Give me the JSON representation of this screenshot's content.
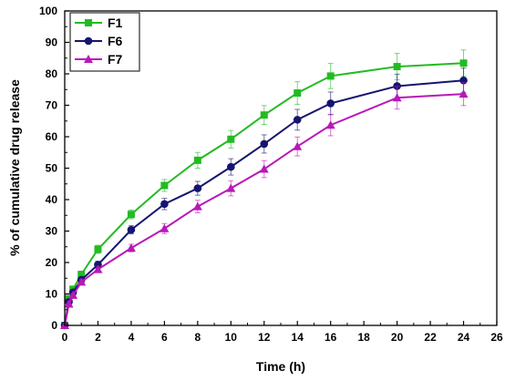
{
  "chart_data": {
    "type": "line",
    "xlabel": "Time (h)",
    "ylabel": "% of cumulative drug release",
    "xlim": [
      0,
      26
    ],
    "ylim": [
      0,
      100
    ],
    "xticks": [
      0,
      2,
      4,
      6,
      8,
      10,
      12,
      14,
      16,
      18,
      20,
      22,
      24,
      26
    ],
    "yticks": [
      0,
      10,
      20,
      30,
      40,
      50,
      60,
      70,
      80,
      90,
      100
    ],
    "grid": false,
    "legend_position": "top-left",
    "x": [
      0,
      0.25,
      0.5,
      1,
      2,
      4,
      6,
      8,
      10,
      12,
      14,
      16,
      20,
      24
    ],
    "series": [
      {
        "name": "F1",
        "color": "#22bb22",
        "marker": "square",
        "values": [
          0,
          8.5,
          11.5,
          16.2,
          24.2,
          35.3,
          44.5,
          52.5,
          59.2,
          66.9,
          73.9,
          79.3,
          82.3,
          83.4
        ],
        "errors": [
          0,
          0.6,
          0.8,
          1.0,
          1.3,
          1.4,
          1.9,
          2.5,
          2.8,
          3.0,
          3.6,
          4.0,
          4.2,
          4.2
        ]
      },
      {
        "name": "F6",
        "color": "#15156f",
        "marker": "circle",
        "values": [
          0,
          7.5,
          10.5,
          14.5,
          19.3,
          30.4,
          38.6,
          43.6,
          50.4,
          57.7,
          65.4,
          70.6,
          76.1,
          77.9
        ],
        "errors": [
          0,
          0.5,
          0.7,
          0.9,
          1.1,
          1.3,
          1.8,
          2.2,
          2.6,
          2.9,
          3.3,
          3.6,
          3.8,
          3.9
        ]
      },
      {
        "name": "F7",
        "color": "#b818b8",
        "marker": "triangle",
        "values": [
          0,
          6.8,
          9.6,
          13.8,
          17.8,
          24.6,
          30.8,
          37.8,
          43.6,
          49.7,
          56.9,
          63.7,
          72.4,
          73.6
        ],
        "errors": [
          0,
          0.5,
          0.6,
          0.8,
          1.0,
          1.2,
          1.6,
          2.0,
          2.4,
          2.7,
          3.0,
          3.4,
          3.6,
          3.7
        ]
      }
    ]
  }
}
